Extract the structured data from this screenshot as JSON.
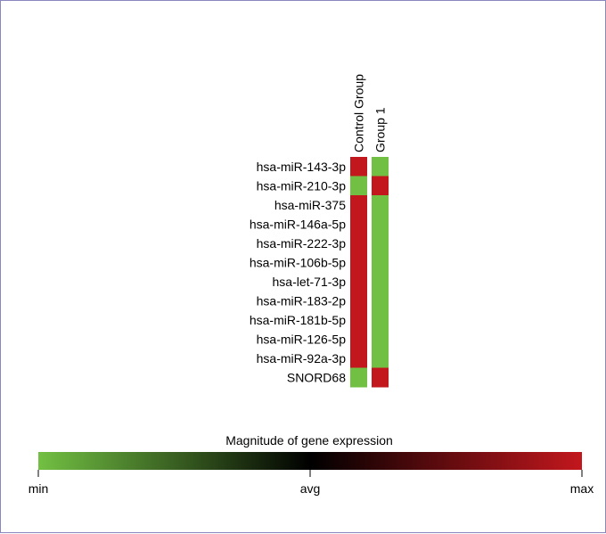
{
  "chart_data": {
    "type": "heatmap",
    "columns": [
      "Control Group",
      "Group 1"
    ],
    "rows": [
      "hsa-miR-143-3p",
      "hsa-miR-210-3p",
      "hsa-miR-375",
      "hsa-miR-146a-5p",
      "hsa-miR-222-3p",
      "hsa-miR-106b-5p",
      "hsa-let-71-3p",
      "hsa-miR-183-2p",
      "hsa-miR-181b-5p",
      "hsa-miR-126-5p",
      "hsa-miR-92a-3p",
      "SNORD68"
    ],
    "values": [
      [
        "max",
        "min"
      ],
      [
        "min",
        "max"
      ],
      [
        "max",
        "min"
      ],
      [
        "max",
        "min"
      ],
      [
        "max",
        "min"
      ],
      [
        "max",
        "min"
      ],
      [
        "max",
        "min"
      ],
      [
        "max",
        "min"
      ],
      [
        "max",
        "min"
      ],
      [
        "max",
        "min"
      ],
      [
        "max",
        "min"
      ],
      [
        "min",
        "max"
      ]
    ],
    "legend": {
      "title": "Magnitude of gene expression",
      "ticks": [
        "min",
        "avg",
        "max"
      ],
      "colors": {
        "min": "#72c043",
        "avg": "#000000",
        "max": "#c2171d"
      }
    }
  }
}
